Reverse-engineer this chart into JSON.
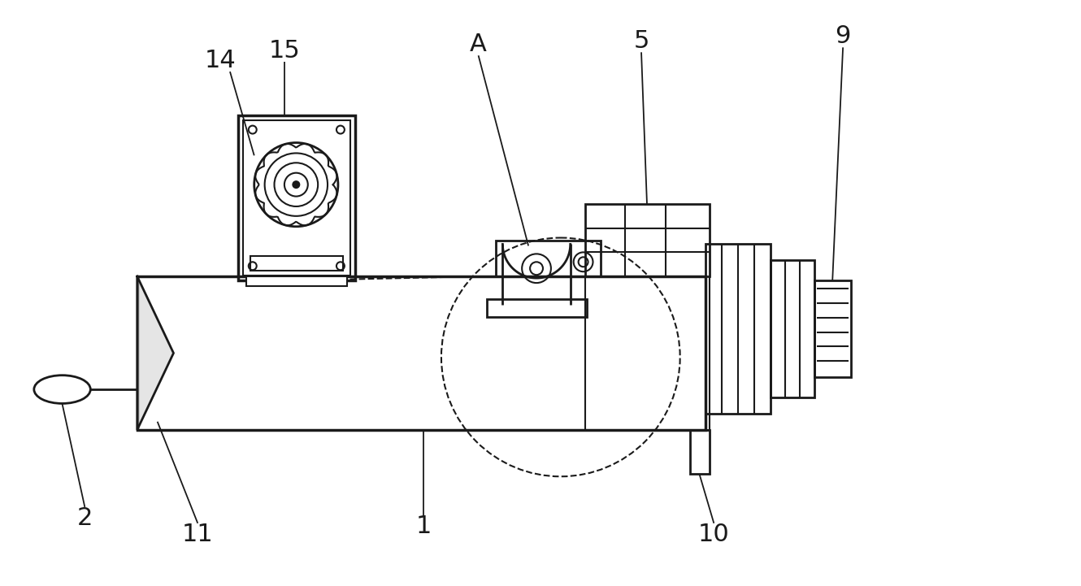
{
  "bg_color": "#ffffff",
  "line_color": "#1a1a1a",
  "fig_width": 13.3,
  "fig_height": 7.21,
  "dpi": 100
}
